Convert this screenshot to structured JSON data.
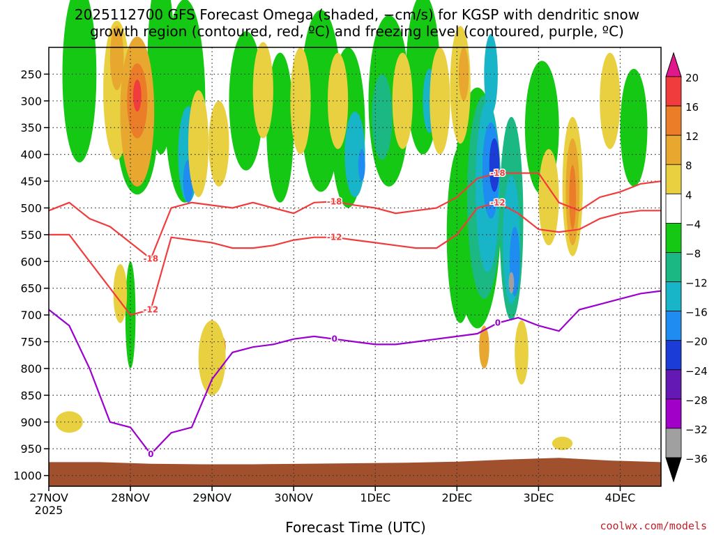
{
  "title": {
    "line1": "2025112700 GFS Forecast Omega (shaded, −cm/s) for KGSP with dendritic snow",
    "line2": "growth region (contoured, red, ºC) and freezing level (contoured, purple, ºC)"
  },
  "credit": "coolwx.com/models",
  "chart_data": {
    "type": "heatmap",
    "title": "2025112700 GFS Forecast Omega (shaded, −cm/s) for KGSP with dendritic snow growth region (contoured, red, ºC) and freezing level (contoured, purple, ºC)",
    "xlabel": "Forecast Time (UTC)",
    "ylabel": "",
    "x_ticks": [
      "27NOV",
      "28NOV",
      "29NOV",
      "30NOV",
      "1DEC",
      "2DEC",
      "3DEC",
      "4DEC"
    ],
    "x_tick_year": "2025",
    "x_range_hours": [
      0,
      180
    ],
    "y_ticks": [
      250,
      300,
      350,
      400,
      450,
      500,
      550,
      600,
      650,
      700,
      750,
      800,
      850,
      900,
      950,
      1000
    ],
    "ylim_hpa": [
      200,
      1020
    ],
    "grid": true,
    "colorbar": {
      "labels": [
        "20",
        "16",
        "12",
        "8",
        "4",
        "−4",
        "−8",
        "−12",
        "−16",
        "−20",
        "−24",
        "−28",
        "−32",
        "−36"
      ],
      "bins": [
        {
          "range": "above 20",
          "color": "#e0188c"
        },
        {
          "range": "16 to 20",
          "color": "#f03c3c"
        },
        {
          "range": "12 to 16",
          "color": "#ec7d28"
        },
        {
          "range": "8 to 12",
          "color": "#e8a830"
        },
        {
          "range": "4 to 8",
          "color": "#e8d040"
        },
        {
          "range": "-4 to 4",
          "color": "#ffffff"
        },
        {
          "range": "-8 to -4",
          "color": "#14c814"
        },
        {
          "range": "-12 to -8",
          "color": "#1cb884"
        },
        {
          "range": "-16 to -12",
          "color": "#18b4c8"
        },
        {
          "range": "-20 to -16",
          "color": "#1e8cf0"
        },
        {
          "range": "-24 to -20",
          "color": "#1c3cd8"
        },
        {
          "range": "-28 to -24",
          "color": "#6418b4"
        },
        {
          "range": "-32 to -28",
          "color": "#a000c8"
        },
        {
          "range": "-36 to -32",
          "color": "#a0a0a0"
        },
        {
          "range": "below -36",
          "color": "#000000"
        }
      ]
    },
    "series": [
      {
        "name": "-18",
        "color": "#f03c3c",
        "x": [
          0,
          6,
          12,
          18,
          24,
          30,
          36,
          42,
          48,
          54,
          60,
          66,
          72,
          78,
          84,
          90,
          96,
          102,
          108,
          114,
          120,
          126,
          132,
          138,
          144,
          150,
          156,
          162,
          168,
          174,
          180
        ],
        "values": [
          505,
          490,
          520,
          535,
          565,
          595,
          500,
          490,
          495,
          500,
          490,
          500,
          510,
          490,
          488,
          495,
          500,
          510,
          505,
          500,
          480,
          445,
          435,
          435,
          435,
          490,
          505,
          480,
          470,
          455,
          450
        ]
      },
      {
        "name": "-12",
        "color": "#f03c3c",
        "x": [
          0,
          6,
          12,
          18,
          24,
          30,
          36,
          42,
          48,
          54,
          60,
          66,
          72,
          78,
          84,
          90,
          96,
          102,
          108,
          114,
          120,
          126,
          132,
          138,
          144,
          150,
          156,
          162,
          168,
          174,
          180
        ],
        "values": [
          550,
          550,
          600,
          650,
          700,
          690,
          555,
          560,
          565,
          575,
          575,
          570,
          560,
          555,
          555,
          560,
          565,
          570,
          575,
          575,
          550,
          500,
          490,
          510,
          540,
          545,
          540,
          520,
          510,
          505,
          505
        ]
      },
      {
        "name": "0",
        "color": "#9a00d0",
        "x": [
          0,
          6,
          12,
          18,
          24,
          30,
          36,
          42,
          48,
          54,
          60,
          66,
          72,
          78,
          84,
          90,
          96,
          102,
          108,
          114,
          120,
          126,
          132,
          138,
          144,
          150,
          156,
          162,
          168,
          174,
          180
        ],
        "values": [
          690,
          720,
          800,
          900,
          910,
          960,
          920,
          910,
          820,
          770,
          760,
          755,
          745,
          740,
          745,
          750,
          755,
          755,
          750,
          745,
          740,
          735,
          715,
          705,
          720,
          730,
          690,
          680,
          670,
          660,
          655
        ]
      }
    ],
    "contour_labels": [
      "-18",
      "-12",
      "0"
    ]
  }
}
